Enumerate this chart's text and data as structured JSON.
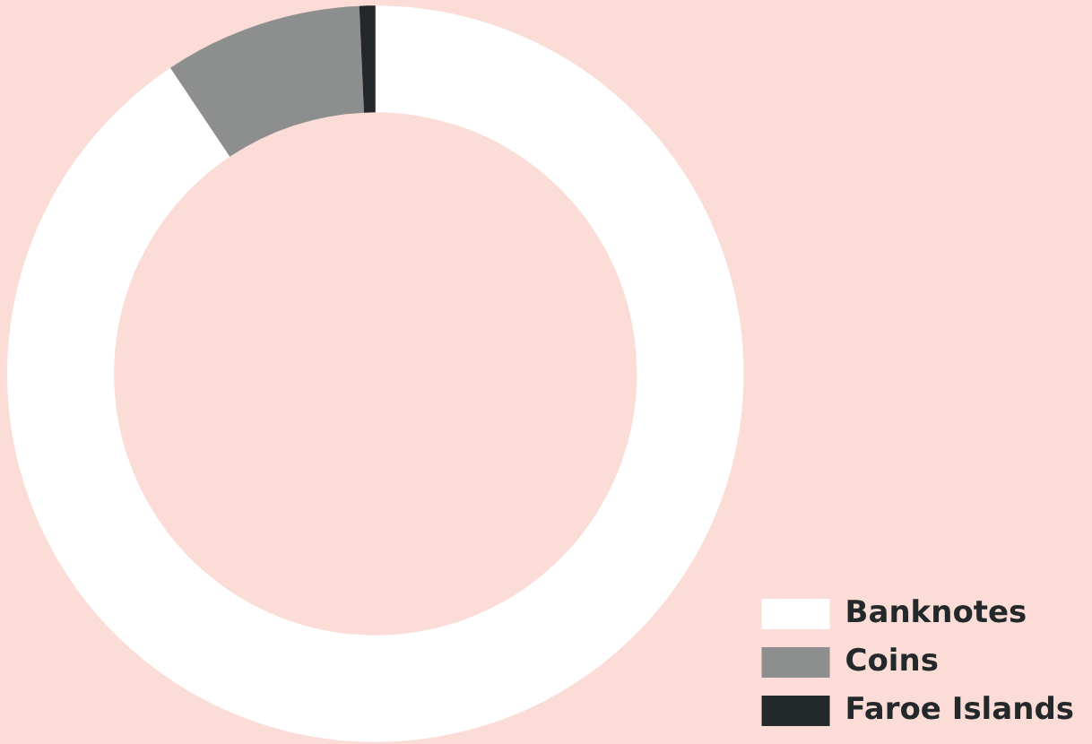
{
  "chart_data": {
    "type": "donut",
    "categories": [
      "Banknotes",
      "Coins",
      "Faroe Islands"
    ],
    "values": [
      90.6,
      8.7,
      0.7
    ],
    "colors": [
      "#ffffff",
      "#8c8f8e",
      "#23292b"
    ],
    "legend": "bottom right"
  }
}
